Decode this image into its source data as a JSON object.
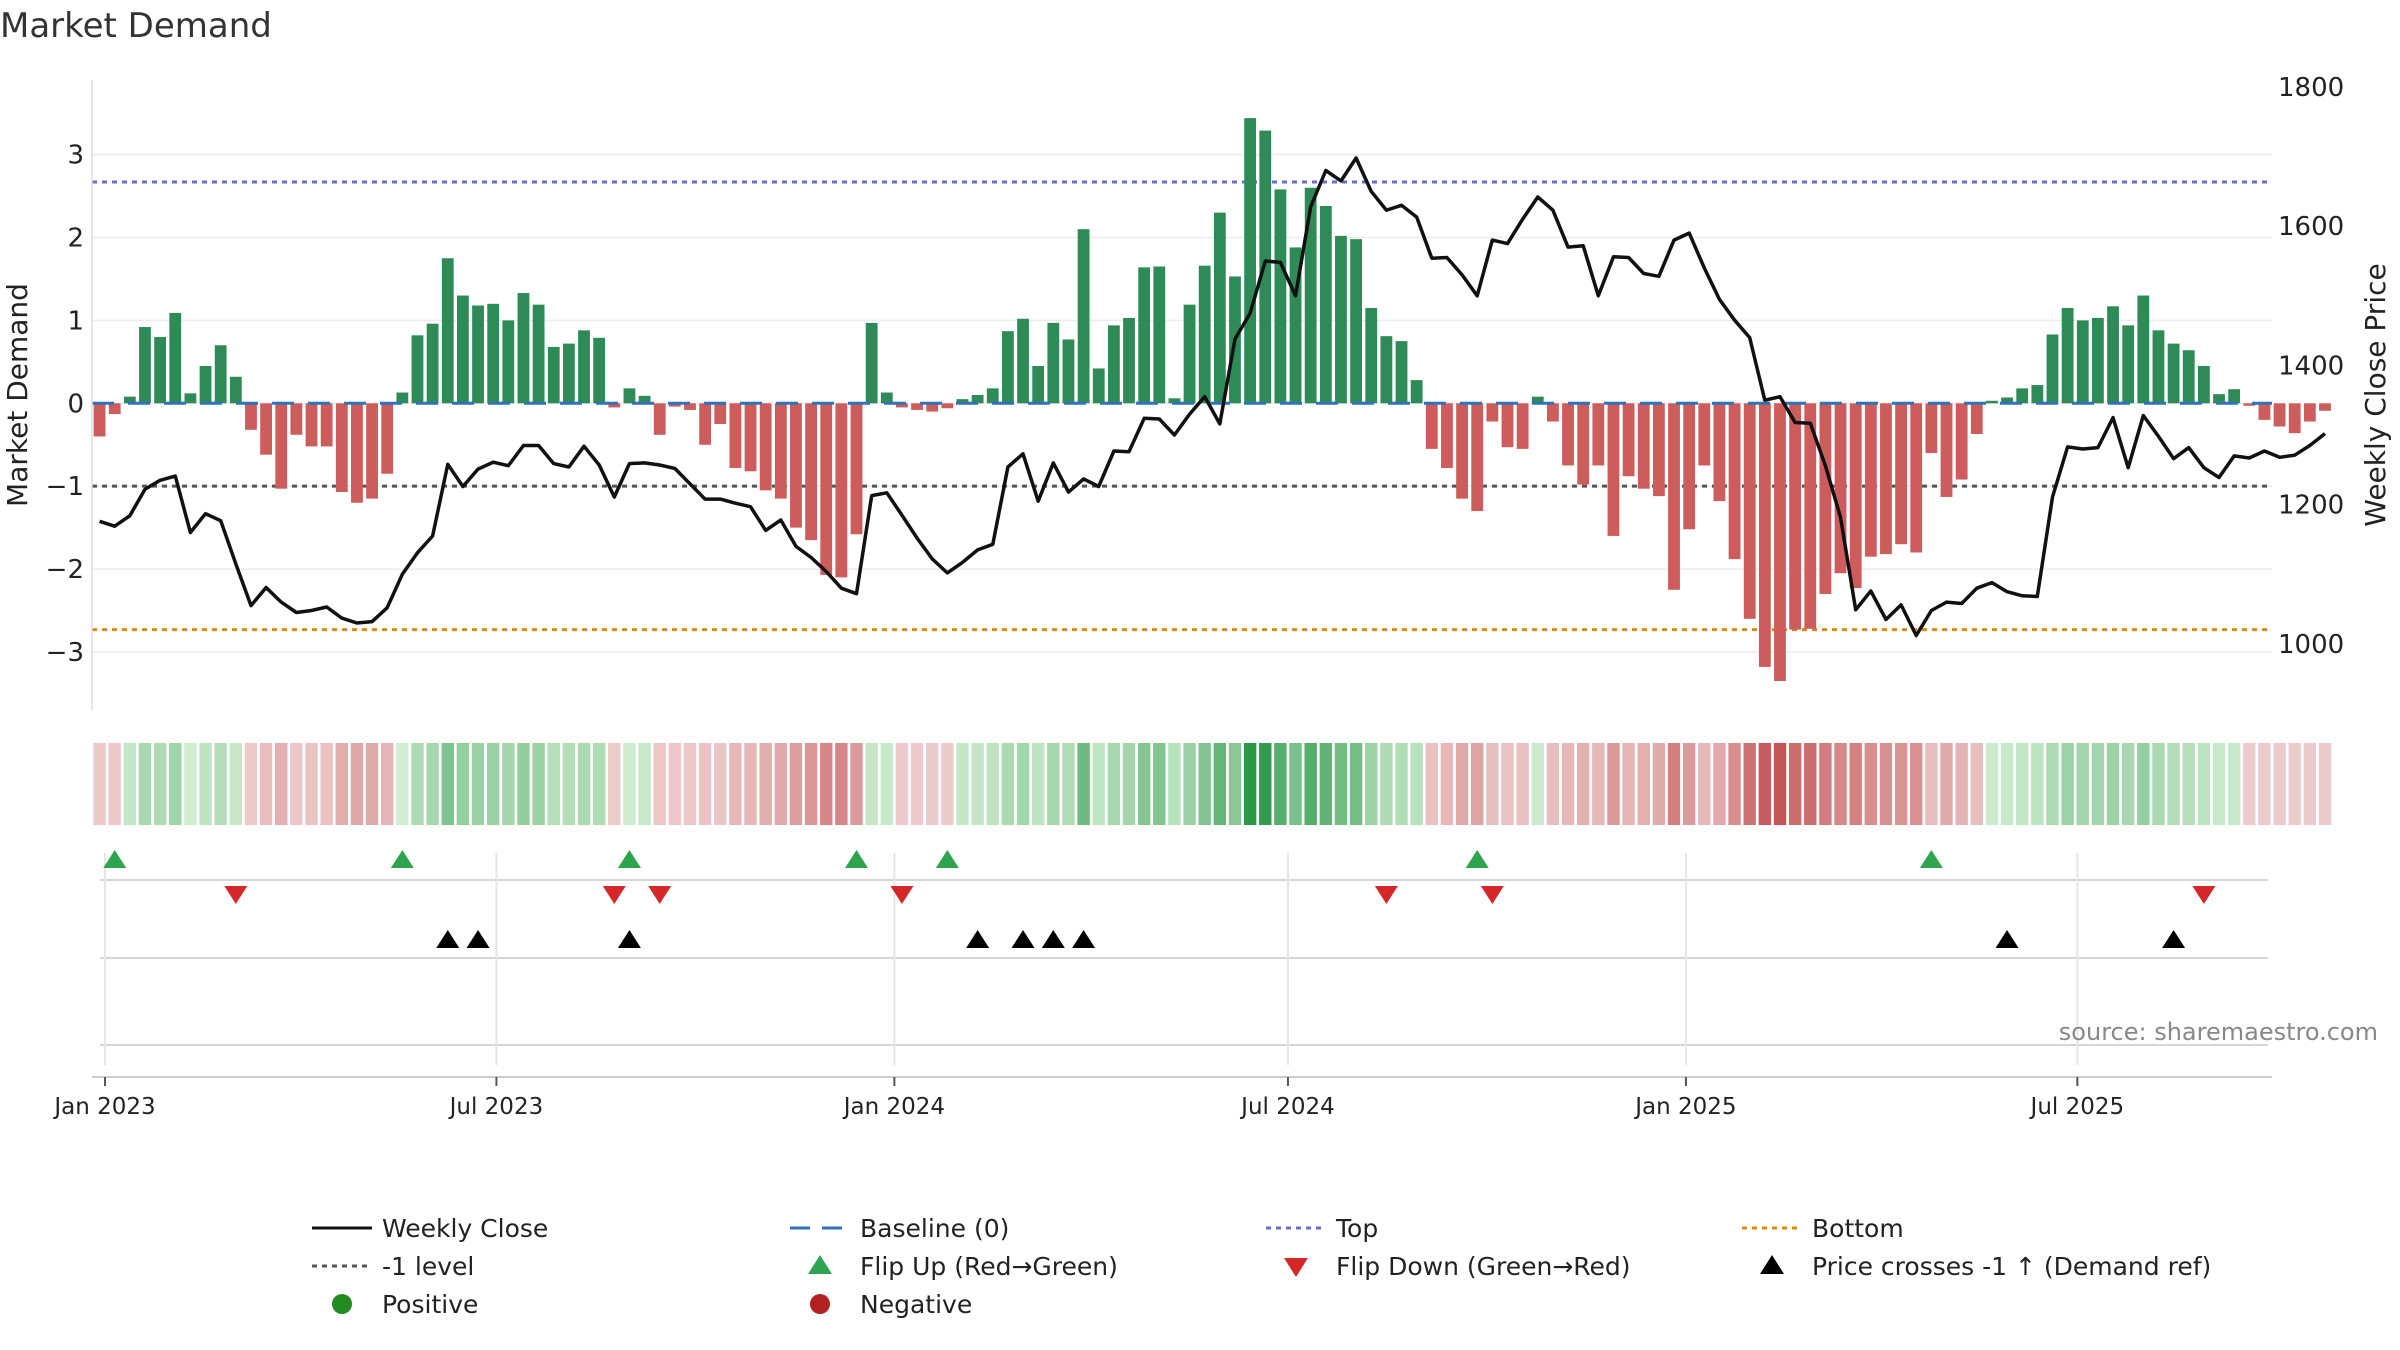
{
  "chart_data": {
    "type": "bar",
    "title": "Market Demand",
    "ylabel": "Market Demand",
    "y2label": "Weekly Close Price",
    "ylim": [
      -3.7,
      3.9
    ],
    "y2lim": [
      905,
      1810
    ],
    "yticks": [
      "3",
      "2",
      "1",
      "0",
      "−1",
      "−2",
      "−3"
    ],
    "y2ticks": [
      "1800",
      "1600",
      "1400",
      "1200",
      "1000"
    ],
    "x_start": "2022-12-26",
    "x_end": "2025-09-29",
    "xticks": [
      {
        "date": "2023-01-01",
        "label": "Jan 2023"
      },
      {
        "date": "2023-07-01",
        "label": "Jul 2023"
      },
      {
        "date": "2024-01-01",
        "label": "Jan 2024"
      },
      {
        "date": "2024-07-01",
        "label": "Jul 2024"
      },
      {
        "date": "2025-01-01",
        "label": "Jan 2025"
      },
      {
        "date": "2025-07-01",
        "label": "Jul 2025"
      }
    ],
    "top_level": 2.67,
    "bottom_level": -2.73,
    "minus1_level": -1.0,
    "grid": true,
    "demand_values": [
      -0.4,
      -0.13,
      0.08,
      0.92,
      0.8,
      1.09,
      0.12,
      0.45,
      0.7,
      0.32,
      -0.32,
      -0.62,
      -1.03,
      -0.38,
      -0.52,
      -0.52,
      -1.07,
      -1.2,
      -1.15,
      -0.85,
      0.13,
      0.82,
      0.96,
      1.75,
      1.3,
      1.18,
      1.2,
      1.0,
      1.33,
      1.19,
      0.68,
      0.72,
      0.88,
      0.79,
      -0.05,
      0.18,
      0.09,
      -0.38,
      -0.04,
      -0.08,
      -0.5,
      -0.25,
      -0.78,
      -0.82,
      -1.05,
      -1.15,
      -1.5,
      -1.65,
      -2.07,
      -2.1,
      -1.58,
      0.97,
      0.13,
      -0.05,
      -0.08,
      -0.1,
      -0.06,
      0.05,
      0.1,
      0.18,
      0.87,
      1.02,
      0.45,
      0.97,
      0.77,
      2.1,
      0.42,
      0.94,
      1.03,
      1.64,
      1.65,
      0.06,
      1.19,
      1.66,
      2.3,
      1.53,
      3.44,
      3.29,
      2.58,
      1.88,
      2.6,
      2.38,
      2.02,
      1.98,
      1.15,
      0.81,
      0.75,
      0.28,
      -0.55,
      -0.78,
      -1.15,
      -1.3,
      -0.22,
      -0.53,
      -0.55,
      0.08,
      -0.22,
      -0.75,
      -0.98,
      -0.75,
      -1.6,
      -0.88,
      -1.03,
      -1.12,
      -2.25,
      -1.52,
      -0.75,
      -1.18,
      -1.88,
      -2.6,
      -3.18,
      -3.35,
      -2.73,
      -2.72,
      -2.3,
      -2.05,
      -2.23,
      -1.85,
      -1.82,
      -1.7,
      -1.8,
      -0.6,
      -1.13,
      -0.92,
      -0.37,
      0.03,
      0.07,
      0.18,
      0.22,
      0.83,
      1.15,
      1.0,
      1.03,
      1.17,
      0.94,
      1.3,
      0.88,
      0.72,
      0.64,
      0.45,
      0.11,
      0.17,
      -0.03,
      -0.2,
      -0.28,
      -0.36,
      -0.22,
      -0.09
    ],
    "series": [
      {
        "name": "Weekly Close",
        "values": [
          1176,
          1169,
          1184,
          1222,
          1235,
          1241,
          1160,
          1187,
          1177,
          1115,
          1055,
          1081,
          1060,
          1045,
          1048,
          1053,
          1037,
          1030,
          1032,
          1052,
          1100,
          1131,
          1155,
          1258,
          1226,
          1251,
          1261,
          1256,
          1285,
          1285,
          1259,
          1254,
          1284,
          1257,
          1211,
          1259,
          1260,
          1257,
          1252,
          1230,
          1208,
          1208,
          1202,
          1197,
          1163,
          1178,
          1140,
          1124,
          1104,
          1080,
          1072,
          1213,
          1217,
          1185,
          1152,
          1122,
          1102,
          1117,
          1135,
          1143,
          1254,
          1273,
          1205,
          1260,
          1218,
          1237,
          1226,
          1277,
          1276,
          1324,
          1323,
          1300,
          1330,
          1355,
          1316,
          1438,
          1475,
          1550,
          1548,
          1500,
          1628,
          1680,
          1665,
          1698,
          1650,
          1623,
          1630,
          1613,
          1554,
          1555,
          1530,
          1500,
          1580,
          1575,
          1610,
          1642,
          1623,
          1570,
          1572,
          1500,
          1556,
          1555,
          1532,
          1528,
          1580,
          1590,
          1540,
          1495,
          1465,
          1440,
          1350,
          1355,
          1318,
          1317,
          1256,
          1182,
          1049,
          1076,
          1035,
          1056,
          1012,
          1048,
          1060,
          1058,
          1080,
          1088,
          1075,
          1069,
          1068,
          1211,
          1283,
          1280,
          1282,
          1325,
          1253,
          1328,
          1298,
          1266,
          1282,
          1253,
          1239,
          1270,
          1267,
          1277,
          1268,
          1271,
          1285,
          1302
        ]
      }
    ],
    "color_strip_values": [
      -0.35,
      -0.35,
      0.4,
      0.92,
      0.8,
      1.09,
      0.12,
      0.45,
      0.7,
      0.32,
      -0.32,
      -0.62,
      -1.03,
      -0.38,
      -0.52,
      -0.52,
      -1.07,
      -1.2,
      -1.15,
      -0.85,
      0.13,
      0.82,
      0.96,
      1.75,
      1.3,
      1.18,
      1.2,
      1.0,
      1.33,
      1.19,
      0.68,
      0.72,
      0.88,
      0.79,
      -0.3,
      0.18,
      0.3,
      -0.38,
      -0.4,
      -0.4,
      -0.5,
      -0.45,
      -0.78,
      -0.82,
      -1.05,
      -1.15,
      -1.5,
      -1.65,
      -2.07,
      -2.1,
      -1.58,
      0.35,
      0.3,
      -0.3,
      -0.3,
      -0.3,
      -0.3,
      0.35,
      0.4,
      0.5,
      0.87,
      1.02,
      0.45,
      0.97,
      0.77,
      2.1,
      0.42,
      0.94,
      1.03,
      1.64,
      1.65,
      0.6,
      1.19,
      1.66,
      2.3,
      1.53,
      3.44,
      3.29,
      2.58,
      1.88,
      2.6,
      2.38,
      2.02,
      1.98,
      1.15,
      0.81,
      0.75,
      0.6,
      -0.55,
      -0.78,
      -1.15,
      -1.3,
      -0.6,
      -0.53,
      -0.55,
      0.2,
      -0.6,
      -0.75,
      -0.98,
      -0.75,
      -1.6,
      -0.88,
      -1.03,
      -1.12,
      -2.25,
      -1.52,
      -0.75,
      -1.18,
      -1.88,
      -2.6,
      -3.18,
      -3.35,
      -2.73,
      -2.72,
      -2.3,
      -2.05,
      -2.23,
      -1.85,
      -1.82,
      -1.7,
      -1.8,
      -0.6,
      -1.13,
      -0.92,
      -0.6,
      0.2,
      0.3,
      0.4,
      0.5,
      0.83,
      1.15,
      1.0,
      1.03,
      1.17,
      0.94,
      1.3,
      0.88,
      0.72,
      0.64,
      0.45,
      0.3,
      0.3,
      -0.3,
      -0.3,
      -0.3,
      -0.3,
      -0.3,
      -0.3
    ],
    "flip_up_weeks": [
      1,
      20,
      35,
      50,
      56,
      91,
      121
    ],
    "flip_down_weeks": [
      9,
      34,
      37,
      53,
      85,
      92,
      139
    ],
    "price_cross_weeks": [
      23,
      25,
      35,
      58,
      61,
      63,
      65,
      126,
      137
    ],
    "legend": {
      "placement": "bottom",
      "items": [
        {
          "label": "Weekly Close",
          "symbol": "line-solid",
          "color": "#111111"
        },
        {
          "label": "Baseline (0)",
          "symbol": "line-dashed",
          "color": "#2f73b5"
        },
        {
          "label": "Top",
          "symbol": "line-dotted",
          "color": "#6b6bd0"
        },
        {
          "label": "Bottom",
          "symbol": "line-dotted",
          "color": "#d98a1e"
        },
        {
          "label": "-1 level",
          "symbol": "line-dotted",
          "color": "#555555"
        },
        {
          "label": "Flip Up (Red→Green)",
          "symbol": "triangle-up",
          "color": "#2ea44f"
        },
        {
          "label": "Flip Down (Green→Red)",
          "symbol": "triangle-down",
          "color": "#d62728"
        },
        {
          "label": "Price crosses -1 ↑ (Demand ref)",
          "symbol": "triangle-up",
          "color": "#000000"
        },
        {
          "label": "Positive",
          "symbol": "circle",
          "color": "#228b22"
        },
        {
          "label": "Negative",
          "symbol": "circle",
          "color": "#b22222"
        }
      ]
    },
    "source": "source: sharemaestro.com",
    "colors": {
      "positive_bar": "#2e8b57",
      "negative_bar": "#cd5c5c",
      "price_line": "#111111",
      "top_line": "#6b6bd0",
      "bottom_line": "#d98a1e",
      "minus1_line": "#555555",
      "baseline": "#2f73b5"
    }
  }
}
